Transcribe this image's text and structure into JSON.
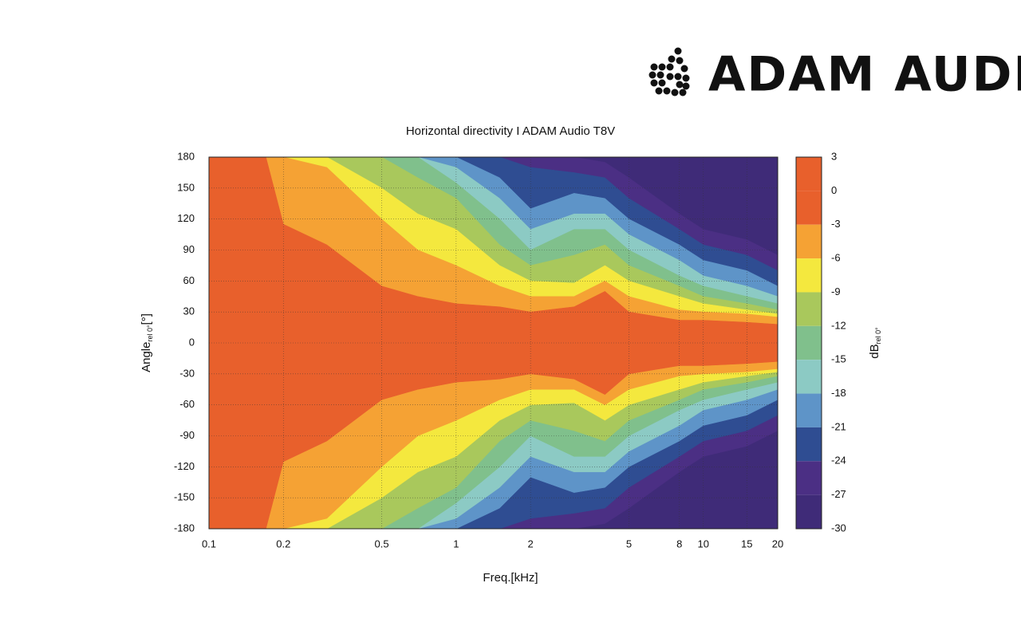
{
  "logo": "ADAM AUDIO",
  "chart_data": {
    "type": "contour",
    "title": "Horizontal directivity I ADAM Audio T8V",
    "xlabel": "Freq.[kHz]",
    "ylabel": {
      "text": "Angle",
      "sub": "rel 0°",
      "suffix": "[°]"
    },
    "xscale": "log",
    "xlim": [
      0.1,
      20
    ],
    "xticks": [
      0.1,
      0.2,
      0.5,
      1,
      2,
      5,
      8,
      10,
      15,
      20
    ],
    "ylim": [
      -180,
      180
    ],
    "yticks": [
      -180,
      -150,
      -120,
      -90,
      -60,
      -30,
      0,
      30,
      60,
      90,
      120,
      150,
      180
    ],
    "grid": true,
    "symmetric": true,
    "x": [
      0.1,
      0.17,
      0.2,
      0.3,
      0.5,
      0.7,
      1,
      1.5,
      2,
      3,
      4,
      5,
      8,
      10,
      15,
      20
    ],
    "contours": [
      {
        "level": -27,
        "angles": [
          180,
          180,
          180,
          180,
          180,
          180,
          180,
          180,
          180,
          180,
          175,
          160,
          125,
          110,
          100,
          85
        ]
      },
      {
        "level": -24,
        "angles": [
          180,
          180,
          180,
          180,
          180,
          180,
          180,
          180,
          170,
          165,
          160,
          140,
          110,
          95,
          85,
          70
        ]
      },
      {
        "level": -21,
        "angles": [
          180,
          180,
          180,
          180,
          180,
          180,
          180,
          160,
          130,
          145,
          140,
          120,
          95,
          80,
          70,
          55
        ]
      },
      {
        "level": -18,
        "angles": [
          180,
          180,
          180,
          180,
          180,
          180,
          170,
          140,
          110,
          125,
          125,
          105,
          80,
          65,
          55,
          45
        ]
      },
      {
        "level": -15,
        "angles": [
          180,
          180,
          180,
          180,
          180,
          180,
          155,
          120,
          90,
          110,
          110,
          90,
          65,
          55,
          45,
          38
        ]
      },
      {
        "level": -12,
        "angles": [
          180,
          180,
          180,
          180,
          180,
          160,
          140,
          95,
          75,
          85,
          95,
          75,
          55,
          45,
          38,
          32
        ]
      },
      {
        "level": -9,
        "angles": [
          180,
          180,
          180,
          180,
          150,
          125,
          110,
          75,
          60,
          58,
          75,
          60,
          45,
          38,
          32,
          28
        ]
      },
      {
        "level": -6,
        "angles": [
          180,
          180,
          180,
          170,
          120,
          90,
          75,
          55,
          45,
          45,
          60,
          45,
          32,
          30,
          28,
          25
        ]
      },
      {
        "level": -3,
        "angles": [
          180,
          180,
          115,
          95,
          55,
          45,
          38,
          35,
          30,
          35,
          50,
          30,
          22,
          22,
          20,
          18
        ]
      }
    ],
    "colorbar": {
      "label": {
        "text": "dB",
        "sub": "rel 0°"
      },
      "ticks": [
        3,
        0,
        -3,
        -6,
        -9,
        -12,
        -15,
        -18,
        -21,
        -24,
        -27,
        -30
      ],
      "colors": [
        "#e8602c",
        "#e8602c",
        "#f5a234",
        "#f4e83e",
        "#a9c85c",
        "#80c08c",
        "#8ccac4",
        "#5e94c8",
        "#2f4d92",
        "#4b2f84",
        "#3f2b78"
      ]
    }
  }
}
